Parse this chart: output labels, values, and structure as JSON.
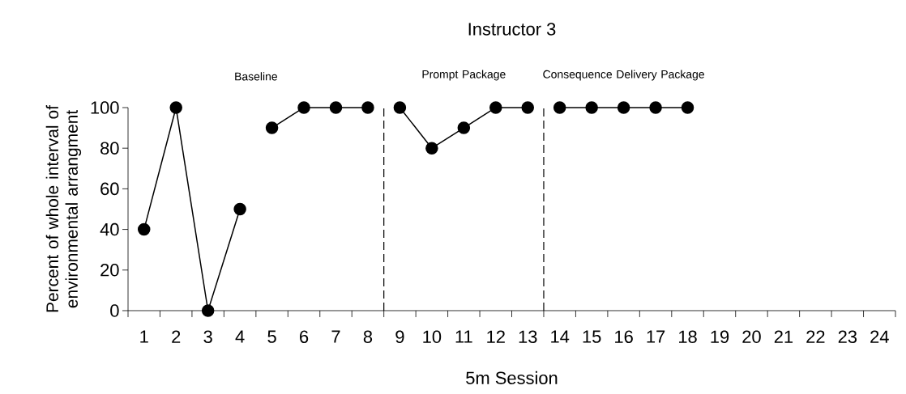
{
  "chart_data": {
    "type": "line",
    "title": "Instructor 3",
    "xlabel": "5m Session",
    "ylabel": "Percent of whole interval of environmental arrangment",
    "annotations": [
      "Baseline",
      "Prompt Package",
      "Consequence Delivery Package"
    ],
    "series": [
      {
        "color": "#000000",
        "x": [
          1,
          2,
          3,
          4
        ],
        "values": [
          40,
          100,
          0,
          50
        ]
      },
      {
        "color": "#000000",
        "x": [
          5,
          6,
          7,
          8
        ],
        "values": [
          90,
          100,
          100,
          100
        ]
      },
      {
        "color": "#000000",
        "x": [
          9,
          10,
          11,
          12,
          13
        ],
        "values": [
          100,
          80,
          90,
          100,
          100
        ]
      },
      {
        "color": "#000000",
        "x": [
          14,
          15,
          16,
          17,
          18
        ],
        "values": [
          100,
          100,
          100,
          100,
          100
        ]
      }
    ],
    "ref_lines": [
      {
        "axis": "x",
        "value": 8.5,
        "line_style": "dashed"
      },
      {
        "axis": "x",
        "value": 13.5,
        "line_style": "dashed"
      }
    ],
    "xlim": [
      0.5,
      24.5
    ],
    "ylim": [
      0,
      100
    ],
    "xticks": [
      {
        "value": 0.5,
        "label": null
      },
      1,
      {
        "value": 1.5,
        "label": null
      },
      2,
      {
        "value": 2.5,
        "label": null
      },
      3,
      {
        "value": 3.5,
        "label": null
      },
      4,
      {
        "value": 4.5,
        "label": null
      },
      5,
      {
        "value": 5.5,
        "label": null
      },
      6,
      {
        "value": 6.5,
        "label": null
      },
      7,
      {
        "value": 7.5,
        "label": null
      },
      8,
      {
        "value": 8.5,
        "label": null
      },
      9,
      {
        "value": 9.5,
        "label": null
      },
      10,
      {
        "value": 10.5,
        "label": null
      },
      11,
      {
        "value": 11.5,
        "label": null
      },
      12,
      {
        "value": 12.5,
        "label": null
      },
      13,
      {
        "value": 13.5,
        "label": null
      },
      14,
      {
        "value": 14.5,
        "label": null
      },
      15,
      {
        "value": 15.5,
        "label": null
      },
      16,
      {
        "value": 16.5,
        "label": null
      },
      17,
      {
        "value": 17.5,
        "label": null
      },
      18,
      {
        "value": 18.5,
        "label": null
      },
      19,
      {
        "value": 19.5,
        "label": null
      },
      20,
      {
        "value": 20.5,
        "label": null
      },
      21,
      {
        "value": 21.5,
        "label": null
      },
      22,
      {
        "value": 22.5,
        "label": null
      },
      23,
      {
        "value": 23.5,
        "label": null
      },
      24,
      {
        "value": 24.5,
        "label": null
      }
    ],
    "yticks": [
      0,
      20,
      40,
      60,
      80,
      100
    ],
    "grid": false,
    "marker": "circle",
    "line_style": "solid"
  }
}
